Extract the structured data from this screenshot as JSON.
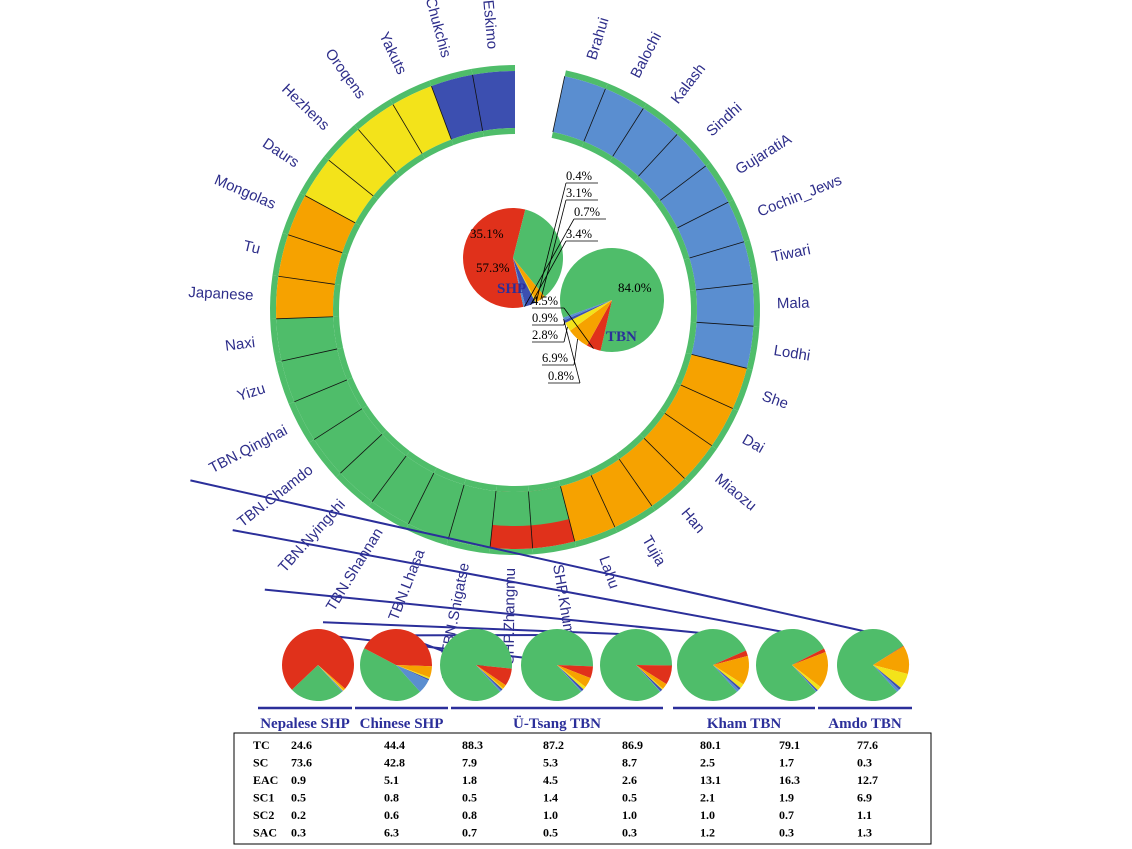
{
  "colors": {
    "TC": "#4fbd6a",
    "SC": "#e0311b",
    "EAC": "#f6a200",
    "SC1": "#f3e31a",
    "SC2": "#3c4fb0",
    "SAC": "#5a8ed0",
    "label": "#2e2e8a",
    "group": "#2b2f9a"
  },
  "chart_data": [
    {
      "type": "bar",
      "layout": "circular",
      "populations": [
        {
          "name": "Brahui",
          "main": "SAC"
        },
        {
          "name": "Balochi",
          "main": "SAC"
        },
        {
          "name": "Kalash",
          "main": "SAC"
        },
        {
          "name": "Sindhi",
          "main": "SAC"
        },
        {
          "name": "GujaratiA",
          "main": "SAC"
        },
        {
          "name": "Cochin_Jews",
          "main": "SAC"
        },
        {
          "name": "Tiwari",
          "main": "SAC"
        },
        {
          "name": "Mala",
          "main": "SAC"
        },
        {
          "name": "Lodhi",
          "main": "SAC"
        },
        {
          "name": "She",
          "main": "EAC"
        },
        {
          "name": "Dai",
          "main": "EAC"
        },
        {
          "name": "Miaozu",
          "main": "EAC"
        },
        {
          "name": "Han",
          "main": "EAC"
        },
        {
          "name": "Tujia",
          "main": "EAC"
        },
        {
          "name": "Lahu",
          "main": "EAC"
        },
        {
          "name": "SHP.Khumbu",
          "main": "SC"
        },
        {
          "name": "SHP.Zhangmu",
          "main": "SC"
        },
        {
          "name": "TBN.Shigatse",
          "main": "TC"
        },
        {
          "name": "TBN.Lhasa",
          "main": "TC"
        },
        {
          "name": "TBN.Shannan",
          "main": "TC"
        },
        {
          "name": "TBN.Nyingchi",
          "main": "TC"
        },
        {
          "name": "TBN.Chamdo",
          "main": "TC"
        },
        {
          "name": "TBN.Qinghai",
          "main": "TC"
        },
        {
          "name": "Yizu",
          "main": "TC"
        },
        {
          "name": "Naxi",
          "main": "TC"
        },
        {
          "name": "Japanese",
          "main": "EAC"
        },
        {
          "name": "Tu",
          "main": "EAC"
        },
        {
          "name": "Mongolas",
          "main": "EAC"
        },
        {
          "name": "Daurs",
          "main": "SC1"
        },
        {
          "name": "Hezhens",
          "main": "SC1"
        },
        {
          "name": "Oroqens",
          "main": "SC1"
        },
        {
          "name": "Yakuts",
          "main": "SC1"
        },
        {
          "name": "Chukchis",
          "main": "SC2"
        },
        {
          "name": "Eskimo",
          "main": "SC2"
        }
      ]
    },
    {
      "type": "pie",
      "name": "SHP",
      "labels": [
        "SC",
        "TC",
        "EAC",
        "SC1",
        "SC2",
        "SAC"
      ],
      "values": [
        57.3,
        35.1,
        3.1,
        0.4,
        3.4,
        0.7
      ],
      "display": [
        "57.3%",
        "35.1%",
        "3.1%",
        "0.4%",
        "3.4%",
        "0.7%"
      ]
    },
    {
      "type": "pie",
      "name": "TBN",
      "labels": [
        "TC",
        "SC",
        "EAC",
        "SC1",
        "SC2",
        "SAC"
      ],
      "values": [
        84.0,
        4.5,
        6.9,
        2.8,
        0.9,
        0.8
      ],
      "display": [
        "84.0%",
        "4.5%",
        "6.9%",
        "2.8%",
        "0.9%",
        "0.8%"
      ]
    },
    {
      "type": "table",
      "groups": [
        {
          "name": "Nepalese SHP",
          "span": 1
        },
        {
          "name": "Chinese SHP",
          "span": 1
        },
        {
          "name": "Ü-Tsang TBN",
          "span": 3
        },
        {
          "name": "Kham TBN",
          "span": 2
        },
        {
          "name": "Amdo TBN",
          "span": 1
        }
      ],
      "row_labels": [
        "TC",
        "SC",
        "EAC",
        "SC1",
        "SC2",
        "SAC"
      ],
      "columns": [
        {
          "population": "SHP.Khumbu",
          "values": [
            "24.6",
            "73.6",
            "0.9",
            "0.5",
            "0.2",
            "0.3"
          ]
        },
        {
          "population": "SHP.Zhangmu",
          "values": [
            "44.4",
            "42.8",
            "5.1",
            "0.8",
            "0.6",
            "6.3"
          ]
        },
        {
          "population": "TBN.Shigatse",
          "values": [
            "88.3",
            "7.9",
            "1.8",
            "0.5",
            "0.8",
            "0.7"
          ]
        },
        {
          "population": "TBN.Lhasa",
          "values": [
            "87.2",
            "5.3",
            "4.5",
            "1.4",
            "1.0",
            "0.5"
          ]
        },
        {
          "population": "TBN.Shannan",
          "values": [
            "86.9",
            "8.7",
            "2.6",
            "0.5",
            "1.0",
            "0.3"
          ]
        },
        {
          "population": "TBN.Nyingchi",
          "values": [
            "80.1",
            "2.5",
            "13.1",
            "2.1",
            "1.0",
            "1.2"
          ]
        },
        {
          "population": "TBN.Chamdo",
          "values": [
            "79.1",
            "1.7",
            "16.3",
            "1.9",
            "0.7",
            "0.3"
          ]
        },
        {
          "population": "TBN.Qinghai",
          "values": [
            "77.6",
            "0.3",
            "12.7",
            "6.9",
            "1.1",
            "1.3"
          ]
        }
      ]
    }
  ]
}
